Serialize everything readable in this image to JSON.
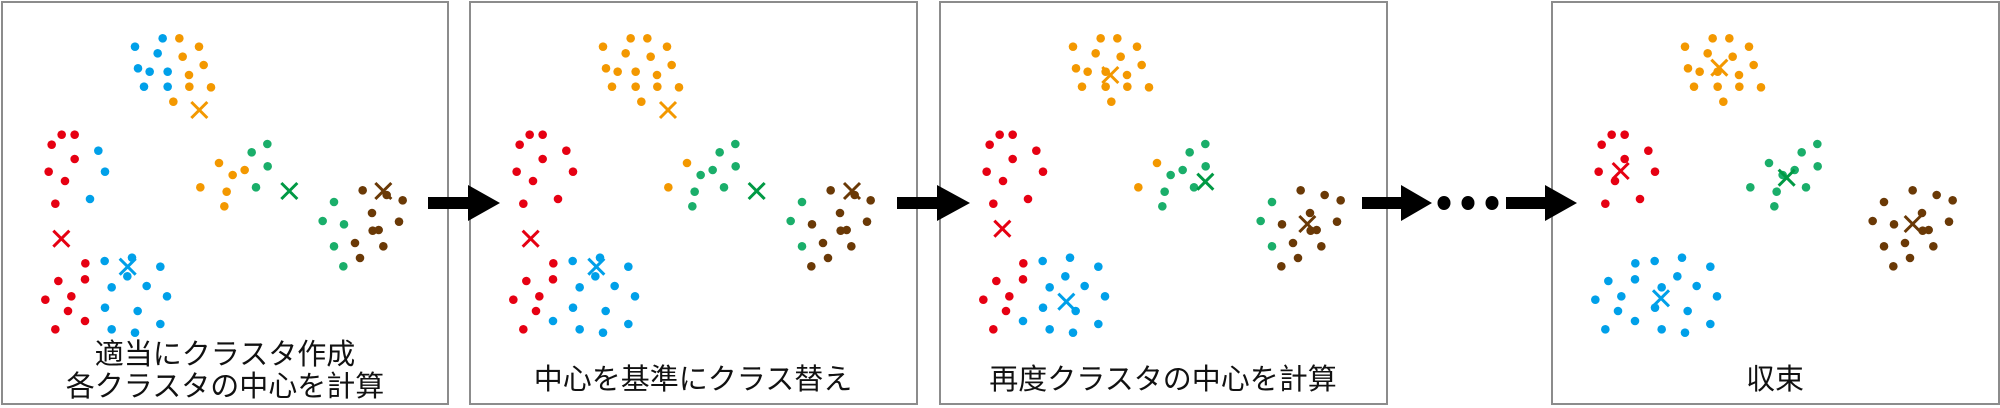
{
  "colors": {
    "red": "#e60012",
    "blue": "#00a0e9",
    "orange": "#f39800",
    "green": "#1aae6a",
    "green_center": "#009944",
    "brown": "#6a3906",
    "arrow": "#000000",
    "border": "#8c8c8c"
  },
  "panels": [
    {
      "caption_lines": [
        "適当にクラスタ作成",
        "各クラスタの中心を計算"
      ]
    },
    {
      "caption_lines": [
        "中心を基準にクラス替え"
      ]
    },
    {
      "caption_lines": [
        "再度クラスタの中心を計算"
      ]
    },
    {
      "caption_lines": [
        "収束"
      ]
    }
  ],
  "icons": {
    "center_marker": "x-mark-icon",
    "point_marker": "dot-icon",
    "arrow": "arrow-right-icon",
    "ellipsis": "ellipsis-icon"
  }
}
